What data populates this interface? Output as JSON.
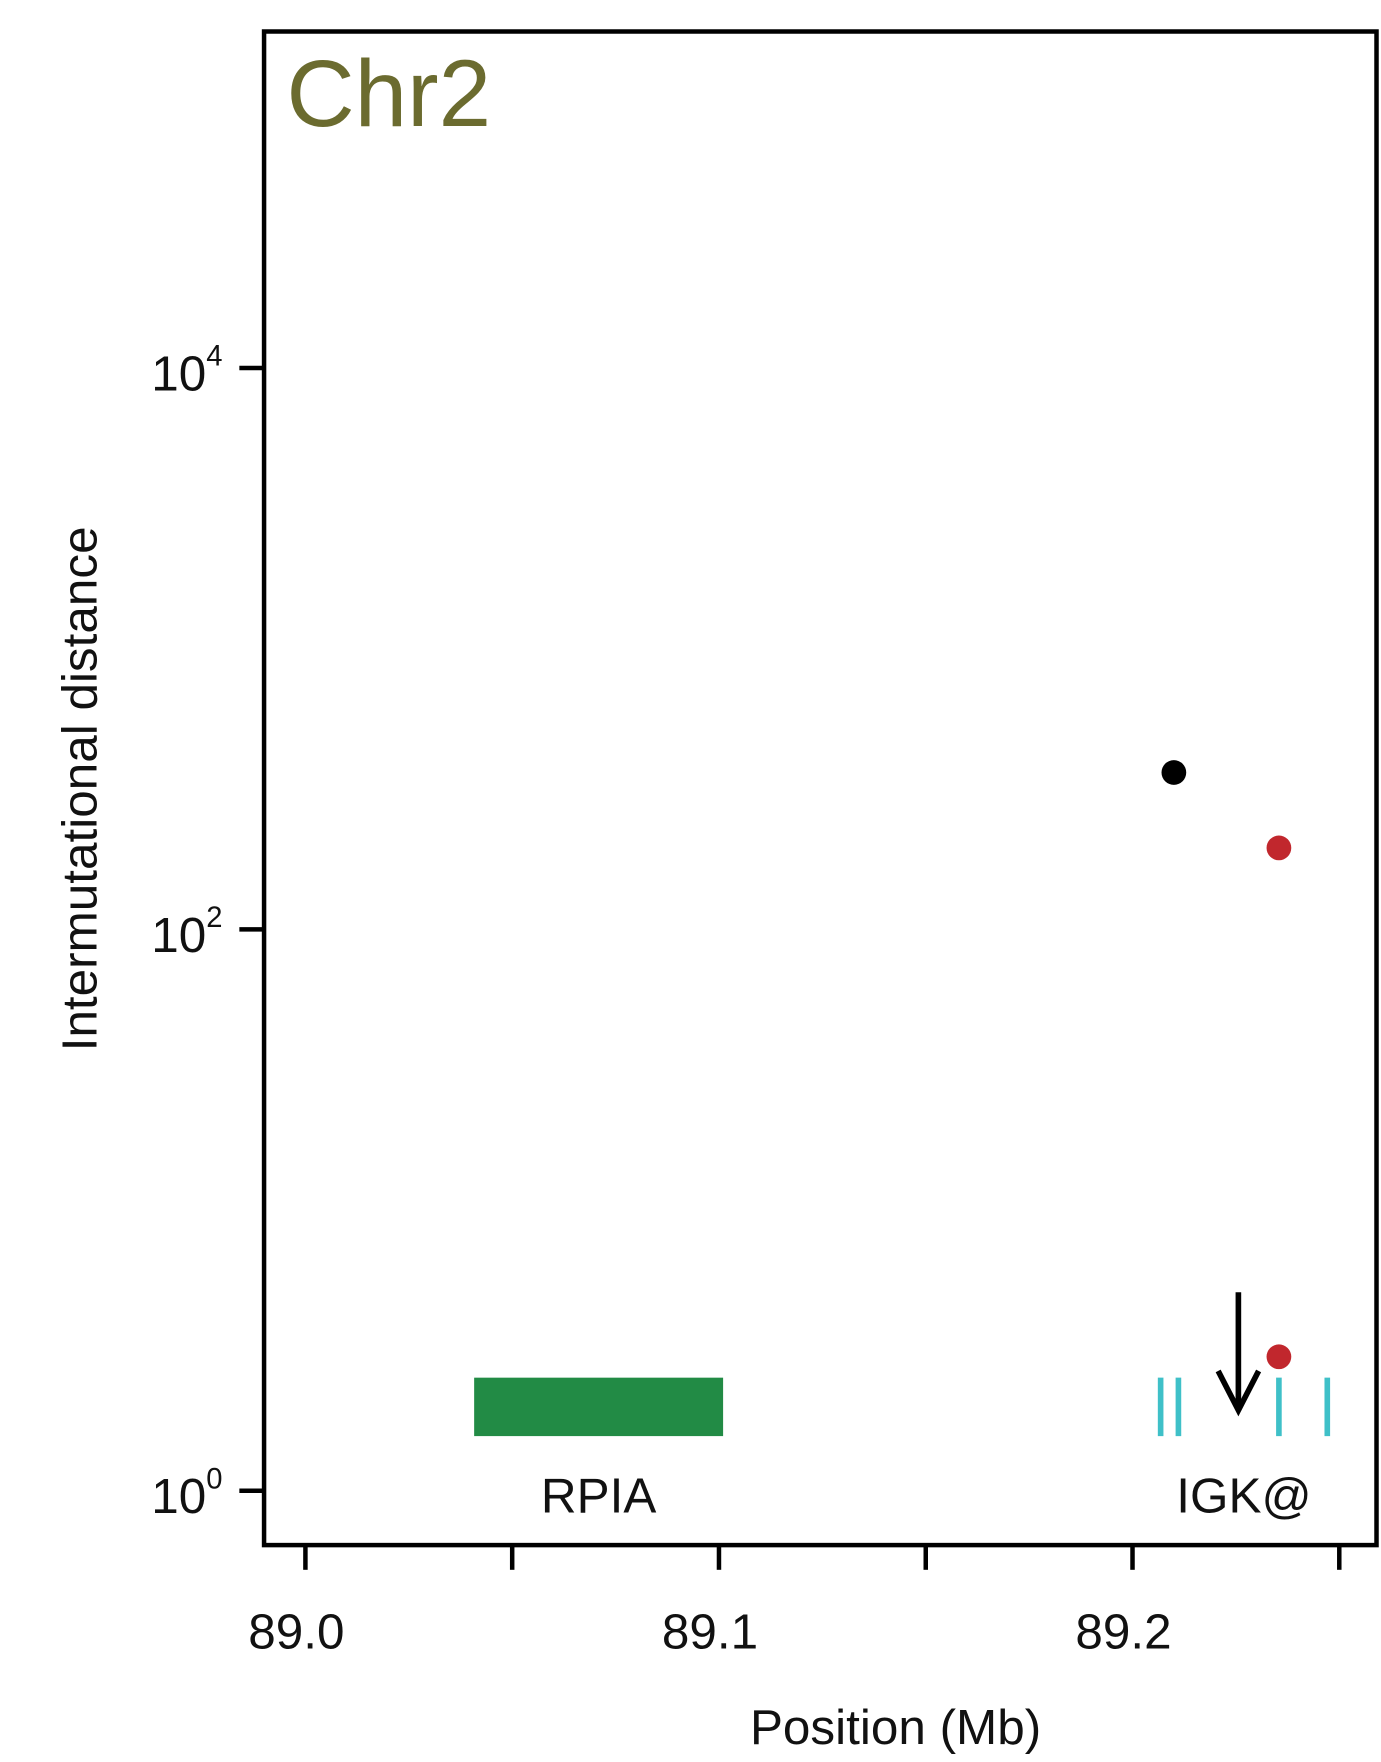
{
  "chart_data": {
    "type": "scatter",
    "title": "Chr2",
    "title_color": "#6b6b2f",
    "x_label": "Position (Mb)",
    "y_label": "Intermutational distance",
    "x": [
      89.21,
      89.2354,
      89.2354
    ],
    "values": [
      362,
      195,
      3.0
    ],
    "colors": [
      "#000000",
      "#c1272d",
      "#c1272d"
    ],
    "xlim": [
      88.99,
      89.259
    ],
    "ylim": [
      0.64,
      158000
    ],
    "log_y": true,
    "xticks": [
      {
        "value": 89,
        "label": "89.0"
      },
      89.1,
      89.2
    ],
    "xminorticks": [
      89.05,
      89.15,
      89.25
    ],
    "yticks": [
      {
        "value": 1,
        "label": "10",
        "exponent": "0"
      },
      {
        "value": 100,
        "label": "10",
        "exponent": "2"
      },
      {
        "value": 10000,
        "label": "10",
        "exponent": "4"
      }
    ],
    "genes": [
      {
        "name": "RPIA",
        "start": 89.0408,
        "end": 89.101,
        "color": "#228b45"
      },
      {
        "name": "IGK@",
        "segments": [
          89.2068,
          89.2111,
          89.2354,
          89.2471
        ],
        "color": "#3fc0c8"
      }
    ],
    "arrow_x": 89.2256
  }
}
